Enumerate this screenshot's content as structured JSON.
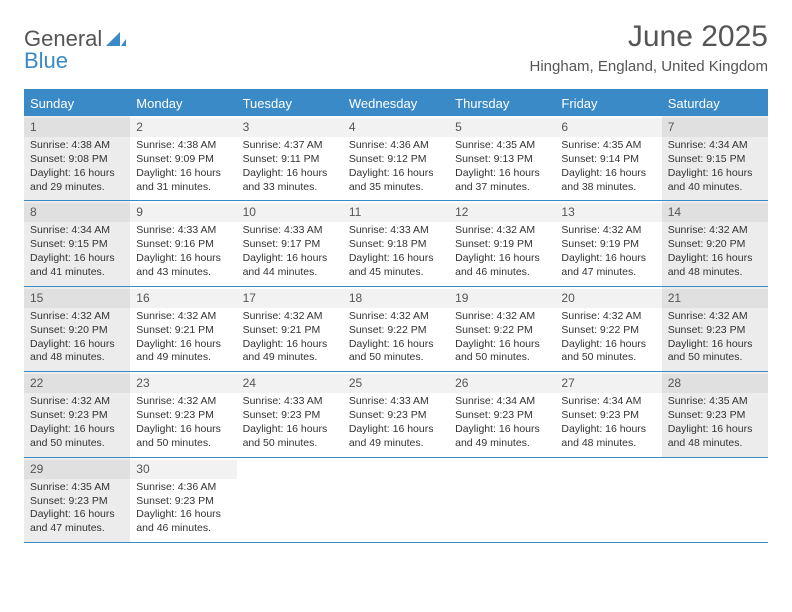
{
  "brand": {
    "part1": "General",
    "part2": "Blue"
  },
  "title": "June 2025",
  "subtitle": "Hingham, England, United Kingdom",
  "colors": {
    "accent": "#3a8ac8",
    "header_text": "#555555",
    "body_text": "#333333",
    "background": "#ffffff",
    "shaded_cell": "#ececec",
    "daynum_bg": "#f2f2f2",
    "daynum_bg_shaded": "#e0e0e0"
  },
  "day_names": [
    "Sunday",
    "Monday",
    "Tuesday",
    "Wednesday",
    "Thursday",
    "Friday",
    "Saturday"
  ],
  "weeks": [
    [
      {
        "n": "1",
        "shaded": true,
        "sunrise": "Sunrise: 4:38 AM",
        "sunset": "Sunset: 9:08 PM",
        "day1": "Daylight: 16 hours",
        "day2": "and 29 minutes."
      },
      {
        "n": "2",
        "shaded": false,
        "sunrise": "Sunrise: 4:38 AM",
        "sunset": "Sunset: 9:09 PM",
        "day1": "Daylight: 16 hours",
        "day2": "and 31 minutes."
      },
      {
        "n": "3",
        "shaded": false,
        "sunrise": "Sunrise: 4:37 AM",
        "sunset": "Sunset: 9:11 PM",
        "day1": "Daylight: 16 hours",
        "day2": "and 33 minutes."
      },
      {
        "n": "4",
        "shaded": false,
        "sunrise": "Sunrise: 4:36 AM",
        "sunset": "Sunset: 9:12 PM",
        "day1": "Daylight: 16 hours",
        "day2": "and 35 minutes."
      },
      {
        "n": "5",
        "shaded": false,
        "sunrise": "Sunrise: 4:35 AM",
        "sunset": "Sunset: 9:13 PM",
        "day1": "Daylight: 16 hours",
        "day2": "and 37 minutes."
      },
      {
        "n": "6",
        "shaded": false,
        "sunrise": "Sunrise: 4:35 AM",
        "sunset": "Sunset: 9:14 PM",
        "day1": "Daylight: 16 hours",
        "day2": "and 38 minutes."
      },
      {
        "n": "7",
        "shaded": true,
        "sunrise": "Sunrise: 4:34 AM",
        "sunset": "Sunset: 9:15 PM",
        "day1": "Daylight: 16 hours",
        "day2": "and 40 minutes."
      }
    ],
    [
      {
        "n": "8",
        "shaded": true,
        "sunrise": "Sunrise: 4:34 AM",
        "sunset": "Sunset: 9:15 PM",
        "day1": "Daylight: 16 hours",
        "day2": "and 41 minutes."
      },
      {
        "n": "9",
        "shaded": false,
        "sunrise": "Sunrise: 4:33 AM",
        "sunset": "Sunset: 9:16 PM",
        "day1": "Daylight: 16 hours",
        "day2": "and 43 minutes."
      },
      {
        "n": "10",
        "shaded": false,
        "sunrise": "Sunrise: 4:33 AM",
        "sunset": "Sunset: 9:17 PM",
        "day1": "Daylight: 16 hours",
        "day2": "and 44 minutes."
      },
      {
        "n": "11",
        "shaded": false,
        "sunrise": "Sunrise: 4:33 AM",
        "sunset": "Sunset: 9:18 PM",
        "day1": "Daylight: 16 hours",
        "day2": "and 45 minutes."
      },
      {
        "n": "12",
        "shaded": false,
        "sunrise": "Sunrise: 4:32 AM",
        "sunset": "Sunset: 9:19 PM",
        "day1": "Daylight: 16 hours",
        "day2": "and 46 minutes."
      },
      {
        "n": "13",
        "shaded": false,
        "sunrise": "Sunrise: 4:32 AM",
        "sunset": "Sunset: 9:19 PM",
        "day1": "Daylight: 16 hours",
        "day2": "and 47 minutes."
      },
      {
        "n": "14",
        "shaded": true,
        "sunrise": "Sunrise: 4:32 AM",
        "sunset": "Sunset: 9:20 PM",
        "day1": "Daylight: 16 hours",
        "day2": "and 48 minutes."
      }
    ],
    [
      {
        "n": "15",
        "shaded": true,
        "sunrise": "Sunrise: 4:32 AM",
        "sunset": "Sunset: 9:20 PM",
        "day1": "Daylight: 16 hours",
        "day2": "and 48 minutes."
      },
      {
        "n": "16",
        "shaded": false,
        "sunrise": "Sunrise: 4:32 AM",
        "sunset": "Sunset: 9:21 PM",
        "day1": "Daylight: 16 hours",
        "day2": "and 49 minutes."
      },
      {
        "n": "17",
        "shaded": false,
        "sunrise": "Sunrise: 4:32 AM",
        "sunset": "Sunset: 9:21 PM",
        "day1": "Daylight: 16 hours",
        "day2": "and 49 minutes."
      },
      {
        "n": "18",
        "shaded": false,
        "sunrise": "Sunrise: 4:32 AM",
        "sunset": "Sunset: 9:22 PM",
        "day1": "Daylight: 16 hours",
        "day2": "and 50 minutes."
      },
      {
        "n": "19",
        "shaded": false,
        "sunrise": "Sunrise: 4:32 AM",
        "sunset": "Sunset: 9:22 PM",
        "day1": "Daylight: 16 hours",
        "day2": "and 50 minutes."
      },
      {
        "n": "20",
        "shaded": false,
        "sunrise": "Sunrise: 4:32 AM",
        "sunset": "Sunset: 9:22 PM",
        "day1": "Daylight: 16 hours",
        "day2": "and 50 minutes."
      },
      {
        "n": "21",
        "shaded": true,
        "sunrise": "Sunrise: 4:32 AM",
        "sunset": "Sunset: 9:23 PM",
        "day1": "Daylight: 16 hours",
        "day2": "and 50 minutes."
      }
    ],
    [
      {
        "n": "22",
        "shaded": true,
        "sunrise": "Sunrise: 4:32 AM",
        "sunset": "Sunset: 9:23 PM",
        "day1": "Daylight: 16 hours",
        "day2": "and 50 minutes."
      },
      {
        "n": "23",
        "shaded": false,
        "sunrise": "Sunrise: 4:32 AM",
        "sunset": "Sunset: 9:23 PM",
        "day1": "Daylight: 16 hours",
        "day2": "and 50 minutes."
      },
      {
        "n": "24",
        "shaded": false,
        "sunrise": "Sunrise: 4:33 AM",
        "sunset": "Sunset: 9:23 PM",
        "day1": "Daylight: 16 hours",
        "day2": "and 50 minutes."
      },
      {
        "n": "25",
        "shaded": false,
        "sunrise": "Sunrise: 4:33 AM",
        "sunset": "Sunset: 9:23 PM",
        "day1": "Daylight: 16 hours",
        "day2": "and 49 minutes."
      },
      {
        "n": "26",
        "shaded": false,
        "sunrise": "Sunrise: 4:34 AM",
        "sunset": "Sunset: 9:23 PM",
        "day1": "Daylight: 16 hours",
        "day2": "and 49 minutes."
      },
      {
        "n": "27",
        "shaded": false,
        "sunrise": "Sunrise: 4:34 AM",
        "sunset": "Sunset: 9:23 PM",
        "day1": "Daylight: 16 hours",
        "day2": "and 48 minutes."
      },
      {
        "n": "28",
        "shaded": true,
        "sunrise": "Sunrise: 4:35 AM",
        "sunset": "Sunset: 9:23 PM",
        "day1": "Daylight: 16 hours",
        "day2": "and 48 minutes."
      }
    ],
    [
      {
        "n": "29",
        "shaded": true,
        "sunrise": "Sunrise: 4:35 AM",
        "sunset": "Sunset: 9:23 PM",
        "day1": "Daylight: 16 hours",
        "day2": "and 47 minutes."
      },
      {
        "n": "30",
        "shaded": false,
        "sunrise": "Sunrise: 4:36 AM",
        "sunset": "Sunset: 9:23 PM",
        "day1": "Daylight: 16 hours",
        "day2": "and 46 minutes."
      },
      {
        "empty": true
      },
      {
        "empty": true
      },
      {
        "empty": true
      },
      {
        "empty": true
      },
      {
        "empty": true
      }
    ]
  ]
}
